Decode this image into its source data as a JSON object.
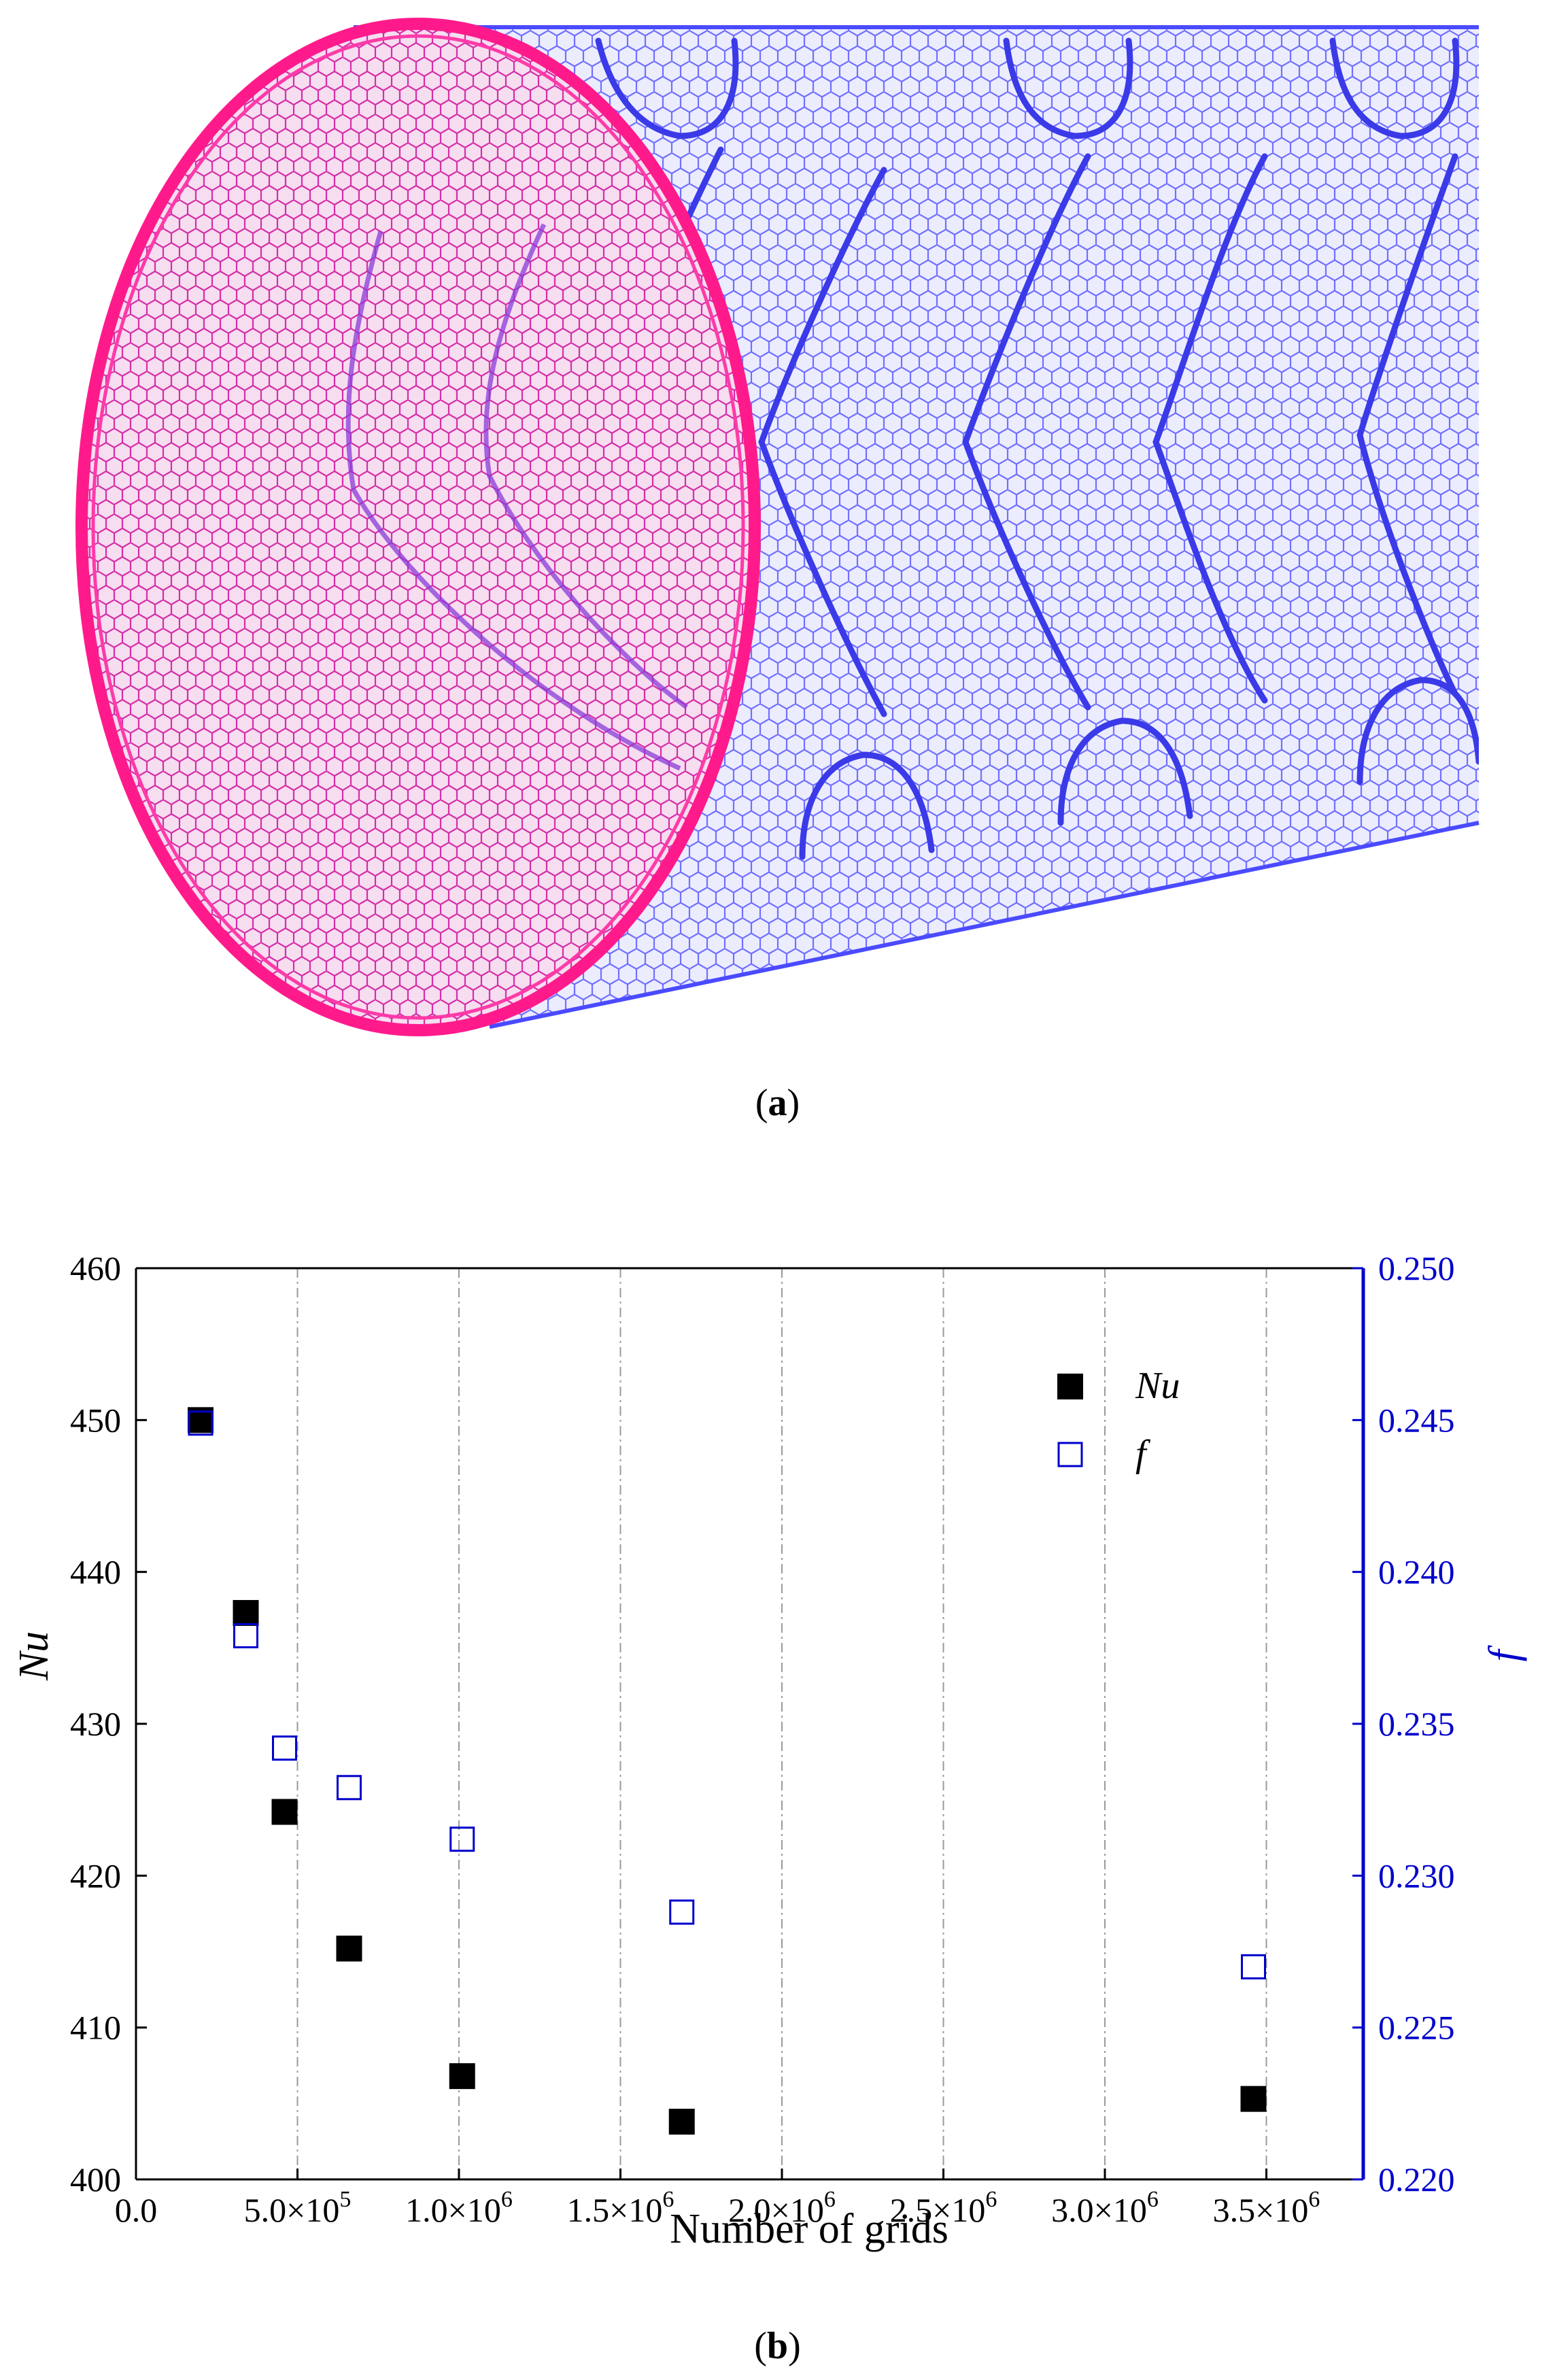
{
  "figure_a": {
    "caption_letter": "a",
    "rim_color": "#ff1a8c",
    "mesh_color": "#5a5aff"
  },
  "figure_b": {
    "caption_letter": "b"
  },
  "chart_data": {
    "type": "scatter",
    "xlabel": "Number of grids",
    "ylabel_left": "Nu",
    "ylabel_right": "f",
    "xlim": [
      0,
      3800000
    ],
    "ylim_left": [
      400,
      460
    ],
    "ylim_right": [
      0.22,
      0.25
    ],
    "x_ticks": [
      0,
      500000,
      1000000,
      1500000,
      2000000,
      2500000,
      3000000,
      3500000
    ],
    "x_tick_labels": [
      "0.0",
      "5.0×10",
      "1.0×10",
      "1.5×10",
      "2.0×10",
      "2.5×10",
      "3.0×10",
      "3.5×10"
    ],
    "x_tick_exponents": [
      "",
      "5",
      "6",
      "6",
      "6",
      "6",
      "6",
      "6"
    ],
    "y_left_ticks": [
      400,
      410,
      420,
      430,
      440,
      450,
      460
    ],
    "y_left_tick_labels": [
      "400",
      "410",
      "420",
      "430",
      "440",
      "450",
      "460"
    ],
    "y_right_ticks": [
      0.22,
      0.225,
      0.23,
      0.235,
      0.24,
      0.245,
      0.25
    ],
    "y_right_tick_labels": [
      "0.220",
      "0.225",
      "0.230",
      "0.235",
      "0.240",
      "0.245",
      "0.250"
    ],
    "vertical_grid": true,
    "legend_position": "top-right",
    "right_axis_color": "#0000cc",
    "series": [
      {
        "name": "Nu",
        "axis": "left",
        "marker": "filled-square",
        "color": "#000000",
        "x": [
          200000,
          340000,
          460000,
          660000,
          1010000,
          1690000,
          3460000
        ],
        "y": [
          450.0,
          437.3,
          424.2,
          415.2,
          406.8,
          403.8,
          405.3
        ]
      },
      {
        "name": "f",
        "axis": "right",
        "marker": "open-square",
        "color": "#0000cc",
        "x": [
          200000,
          340000,
          460000,
          660000,
          1010000,
          1690000,
          3460000
        ],
        "y": [
          0.2449,
          0.2379,
          0.2342,
          0.2329,
          0.2312,
          0.2288,
          0.227
        ]
      }
    ]
  }
}
